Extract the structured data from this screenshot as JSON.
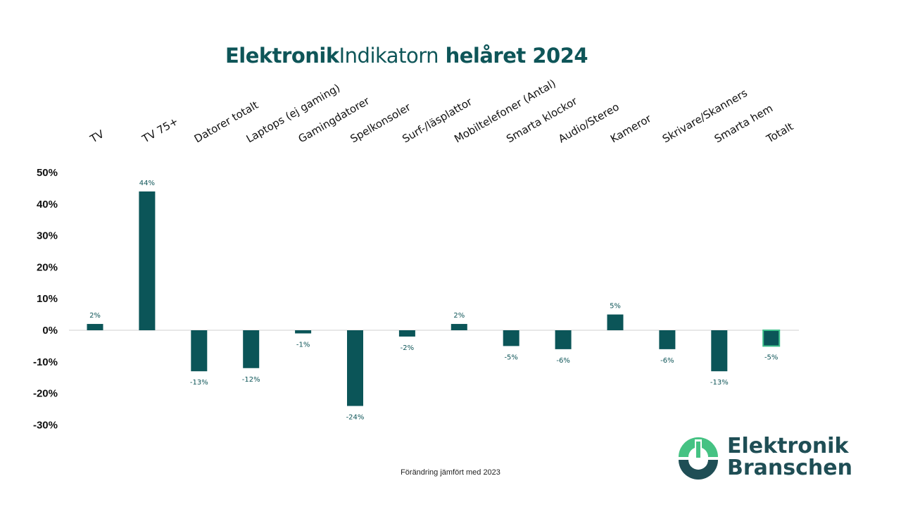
{
  "title": {
    "part1": "Elektronik",
    "part2": "Indikatorn",
    "part3": " helåret 2024"
  },
  "colors": {
    "bar": "#0b5558",
    "highlight_outline": "#3dbf8a",
    "title": "#0e5558",
    "logo_green": "#45c283",
    "logo_dark": "#1f4e55"
  },
  "logo": {
    "line1": "Elektronik",
    "line2": "Branschen"
  },
  "chart_data": {
    "type": "bar",
    "title": "ElektronikIndikatorn helåret 2024",
    "xlabel": "Förändring jämfört med 2023",
    "ylabel": "",
    "ylim": [
      -30,
      50
    ],
    "yticks": [
      50,
      40,
      30,
      20,
      10,
      0,
      -10,
      -20,
      -30
    ],
    "ytick_labels": [
      "50%",
      "40%",
      "30%",
      "20%",
      "10%",
      "0%",
      "-10%",
      "-20%",
      "-30%"
    ],
    "grid": false,
    "categories": [
      "TV",
      "TV 75+",
      "Datorer totalt",
      "Laptops (ej gaming)",
      "Gamingdatorer",
      "Spelkonsoler",
      "Surf-/läsplattor",
      "Mobiltelefoner (Antal)",
      "Smarta klockor",
      "Audio/Stereo",
      "Kameror",
      "Skrivare/Skanners",
      "Smarta hem",
      "Totalt"
    ],
    "values": [
      2,
      44,
      -13,
      -12,
      -1,
      -24,
      -2,
      2,
      -5,
      -6,
      5,
      -6,
      -13,
      -5
    ],
    "data_labels": [
      "2%",
      "44%",
      "-13%",
      "-12%",
      "-1%",
      "-24%",
      "-2%",
      "2%",
      "-5%",
      "-6%",
      "5%",
      "-6%",
      "-13%",
      "-5%"
    ],
    "highlighted_category": "Totalt"
  }
}
